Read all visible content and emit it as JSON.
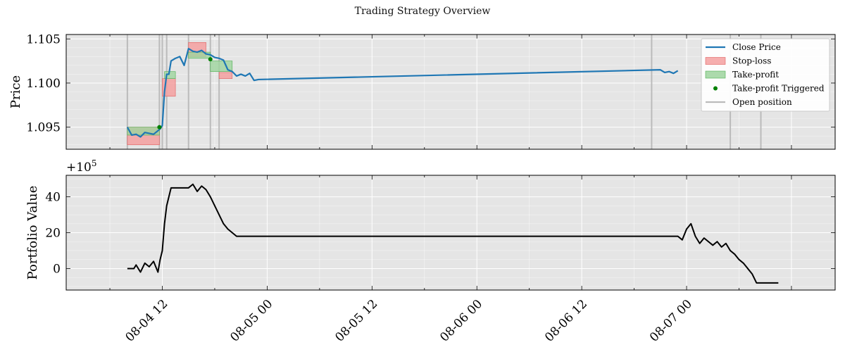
{
  "figure": {
    "title": "Trading Strategy Overview"
  },
  "chart_data": [
    {
      "type": "line",
      "ylabel": "Price",
      "xlabel": "",
      "x_axis": "datetime",
      "xlim": [
        "2024-08-04 01:00",
        "2024-08-07 17:00"
      ],
      "ylim": [
        1.0925,
        1.1055
      ],
      "yticks": [
        1.095,
        1.1,
        1.105
      ],
      "ytick_labels": [
        "1.095",
        "1.100",
        "1.105"
      ],
      "grid": true,
      "legend_position": "top-right",
      "legend": [
        "Close Price",
        "Stop-loss",
        "Take-profit",
        "Take-profit Triggered",
        "Open position"
      ],
      "series": [
        {
          "name": "Close Price",
          "color": "#1f77b4",
          "x": [
            "2024-08-04 08:00",
            "2024-08-04 08:30",
            "2024-08-04 09:00",
            "2024-08-04 09:30",
            "2024-08-04 10:00",
            "2024-08-04 10:30",
            "2024-08-04 11:00",
            "2024-08-04 11:30",
            "2024-08-04 11:45",
            "2024-08-04 12:00",
            "2024-08-04 12:15",
            "2024-08-04 12:30",
            "2024-08-04 12:45",
            "2024-08-04 13:00",
            "2024-08-04 13:30",
            "2024-08-04 14:00",
            "2024-08-04 14:30",
            "2024-08-04 15:00",
            "2024-08-04 15:30",
            "2024-08-04 16:00",
            "2024-08-04 16:30",
            "2024-08-04 17:00",
            "2024-08-04 17:30",
            "2024-08-04 18:00",
            "2024-08-04 18:30",
            "2024-08-04 19:00",
            "2024-08-04 19:30",
            "2024-08-04 20:00",
            "2024-08-04 20:30",
            "2024-08-04 21:00",
            "2024-08-04 21:30",
            "2024-08-04 22:00",
            "2024-08-04 22:30",
            "2024-08-04 23:00",
            "2024-08-06 21:00",
            "2024-08-06 21:30",
            "2024-08-06 22:00",
            "2024-08-06 22:30",
            "2024-08-06 23:00"
          ],
          "y": [
            1.095,
            1.0941,
            1.0942,
            1.0939,
            1.0944,
            1.0943,
            1.0942,
            1.0946,
            1.0948,
            1.0952,
            1.099,
            1.101,
            1.101,
            1.1025,
            1.1028,
            1.103,
            1.102,
            1.1039,
            1.1036,
            1.1035,
            1.1037,
            1.1033,
            1.1032,
            1.1029,
            1.1028,
            1.1026,
            1.1015,
            1.1013,
            1.1008,
            1.101,
            1.1008,
            1.1011,
            1.1003,
            1.1004,
            1.1015,
            1.1012,
            1.1013,
            1.1011,
            1.1014
          ]
        }
      ],
      "stop_loss": {
        "color": "#f4a0a0",
        "bands": [
          {
            "x": [
              "2024-08-04 08:00",
              "2024-08-04 11:40"
            ],
            "y": [
              1.093,
              1.095
            ]
          },
          {
            "x": [
              "2024-08-04 12:00",
              "2024-08-04 13:30"
            ],
            "y": [
              1.0985,
              1.1005
            ]
          },
          {
            "x": [
              "2024-08-04 15:00",
              "2024-08-04 17:00"
            ],
            "y": [
              1.103,
              1.1046
            ]
          },
          {
            "x": [
              "2024-08-04 18:30",
              "2024-08-04 20:00"
            ],
            "y": [
              1.1005,
              1.1012
            ]
          }
        ]
      },
      "take_profit": {
        "color": "#9ed49e",
        "bands": [
          {
            "x": [
              "2024-08-04 08:00",
              "2024-08-04 11:40"
            ],
            "y": [
              1.095,
              1.0941
            ]
          },
          {
            "x": [
              "2024-08-04 12:15",
              "2024-08-04 13:30"
            ],
            "y": [
              1.1005,
              1.1013
            ]
          },
          {
            "x": [
              "2024-08-04 15:00",
              "2024-08-04 17:30"
            ],
            "y": [
              1.1028,
              1.1035
            ]
          },
          {
            "x": [
              "2024-08-04 17:30",
              "2024-08-04 20:00"
            ],
            "y": [
              1.1013,
              1.1025
            ]
          }
        ]
      },
      "take_profit_triggered": {
        "color": "#008000",
        "x": [
          "2024-08-04 11:40",
          "2024-08-04 17:30"
        ],
        "y": [
          1.095,
          1.1027
        ]
      },
      "open_positions": {
        "color": "#bbbbbb",
        "x": [
          "2024-08-04 08:00",
          "2024-08-04 11:40",
          "2024-08-04 12:00",
          "2024-08-04 12:30",
          "2024-08-04 15:00",
          "2024-08-04 17:30",
          "2024-08-04 18:30",
          "2024-08-06 20:00",
          "2024-08-07 05:00",
          "2024-08-07 08:30"
        ]
      }
    },
    {
      "type": "line",
      "ylabel": "Portfolio Value",
      "offset_label": "+10",
      "offset_exponent": "5",
      "ylim": [
        -12,
        52
      ],
      "yticks": [
        0,
        20,
        40
      ],
      "ytick_labels": [
        "0",
        "20",
        "40"
      ],
      "grid": true,
      "xticks": [
        "2024-08-04 12:00",
        "2024-08-05 00:00",
        "2024-08-05 12:00",
        "2024-08-06 00:00",
        "2024-08-06 12:00",
        "2024-08-07 00:00"
      ],
      "xtick_labels": [
        "08-04 12",
        "08-05 00",
        "08-05 12",
        "08-06 00",
        "08-06 12",
        "08-07 00"
      ],
      "series": [
        {
          "name": "Portfolio Value",
          "color": "#000000",
          "x": [
            "2024-08-04 08:00",
            "2024-08-04 08:45",
            "2024-08-04 09:00",
            "2024-08-04 09:30",
            "2024-08-04 10:00",
            "2024-08-04 10:30",
            "2024-08-04 11:00",
            "2024-08-04 11:30",
            "2024-08-04 11:45",
            "2024-08-04 12:00",
            "2024-08-04 12:15",
            "2024-08-04 12:30",
            "2024-08-04 13:00",
            "2024-08-04 13:15",
            "2024-08-04 15:00",
            "2024-08-04 15:30",
            "2024-08-04 16:00",
            "2024-08-04 16:30",
            "2024-08-04 17:00",
            "2024-08-04 17:30",
            "2024-08-04 18:00",
            "2024-08-04 18:30",
            "2024-08-04 19:00",
            "2024-08-04 19:30",
            "2024-08-04 20:00",
            "2024-08-04 20:30",
            "2024-08-06 23:00",
            "2024-08-06 23:30",
            "2024-08-07 00:00",
            "2024-08-07 00:30",
            "2024-08-07 01:00",
            "2024-08-07 01:30",
            "2024-08-07 02:00",
            "2024-08-07 02:30",
            "2024-08-07 03:00",
            "2024-08-07 03:30",
            "2024-08-07 04:00",
            "2024-08-07 04:30",
            "2024-08-07 05:00",
            "2024-08-07 05:30",
            "2024-08-07 06:00",
            "2024-08-07 06:30",
            "2024-08-07 07:00",
            "2024-08-07 07:30",
            "2024-08-07 08:00",
            "2024-08-07 09:00",
            "2024-08-07 10:30"
          ],
          "y": [
            0,
            0,
            2,
            -2,
            3,
            1,
            4,
            -2,
            5,
            10,
            25,
            35,
            45,
            45,
            45,
            47,
            43,
            46,
            44,
            40,
            35,
            30,
            25,
            22,
            20,
            18,
            18,
            16,
            22,
            25,
            18,
            14,
            17,
            15,
            13,
            15,
            12,
            14,
            10,
            8,
            5,
            3,
            0,
            -3,
            -8,
            -8,
            -8
          ]
        }
      ]
    }
  ]
}
